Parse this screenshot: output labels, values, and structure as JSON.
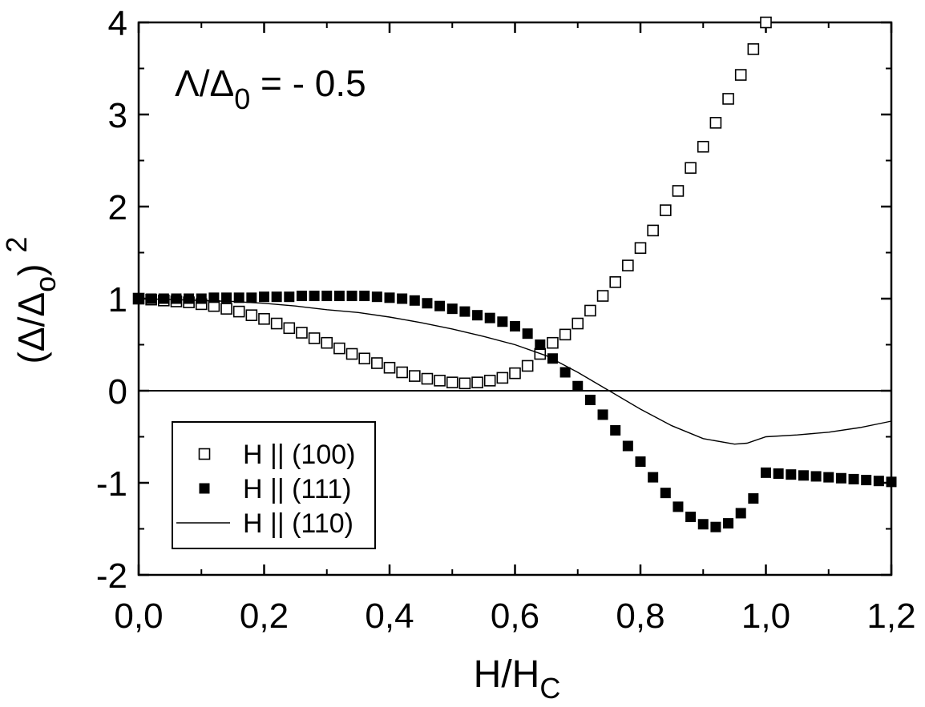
{
  "chart_data": {
    "type": "scatter",
    "annotation": [
      "Λ/Δ",
      "0",
      " = - 0.5"
    ],
    "xlabel": [
      "H/H",
      "C"
    ],
    "ylabel": [
      "(Δ/Δ",
      "o",
      ")",
      "2"
    ],
    "xlim": [
      0,
      1.2
    ],
    "ylim": [
      -2,
      4
    ],
    "xticks": [
      {
        "value": 0,
        "label": "0,0"
      },
      {
        "value": 0.2,
        "label": "0,2"
      },
      {
        "value": 0.4,
        "label": "0,4"
      },
      {
        "value": 0.6,
        "label": "0,6"
      },
      {
        "value": 0.8,
        "label": "0,8"
      },
      {
        "value": 1.0,
        "label": "1,0"
      },
      {
        "value": 1.2,
        "label": "1,2"
      }
    ],
    "yticks": [
      -2,
      -1,
      0,
      1,
      2,
      3,
      4
    ],
    "xminorticks": [
      0.1,
      0.3,
      0.5,
      0.7,
      0.9,
      1.1
    ],
    "yminorticks": [
      -1.5,
      -0.5,
      0.5,
      1.5,
      2.5,
      3.5
    ],
    "zero_line": true,
    "series": [
      {
        "name": "H || (100)",
        "marker": "open-square",
        "color": "#000000",
        "x": [
          0,
          0.02,
          0.04,
          0.06,
          0.08,
          0.1,
          0.12,
          0.14,
          0.16,
          0.18,
          0.2,
          0.22,
          0.24,
          0.26,
          0.28,
          0.3,
          0.32,
          0.34,
          0.36,
          0.38,
          0.4,
          0.42,
          0.44,
          0.46,
          0.48,
          0.5,
          0.52,
          0.54,
          0.56,
          0.58,
          0.6,
          0.62,
          0.64,
          0.66,
          0.68,
          0.7,
          0.72,
          0.74,
          0.76,
          0.78,
          0.8,
          0.82,
          0.84,
          0.86,
          0.88,
          0.9,
          0.92,
          0.94,
          0.96,
          0.98,
          1.0
        ],
        "values": [
          1.0,
          0.99,
          0.98,
          0.97,
          0.96,
          0.94,
          0.92,
          0.89,
          0.86,
          0.82,
          0.78,
          0.73,
          0.68,
          0.63,
          0.57,
          0.52,
          0.46,
          0.4,
          0.35,
          0.3,
          0.25,
          0.2,
          0.16,
          0.13,
          0.11,
          0.09,
          0.08,
          0.09,
          0.11,
          0.14,
          0.19,
          0.27,
          0.4,
          0.52,
          0.61,
          0.73,
          0.87,
          1.03,
          1.18,
          1.36,
          1.55,
          1.74,
          1.96,
          2.17,
          2.42,
          2.65,
          2.91,
          3.17,
          3.43,
          3.71,
          4.0
        ]
      },
      {
        "name": "H || (111)",
        "marker": "filled-square",
        "color": "#000000",
        "x": [
          0,
          0.02,
          0.04,
          0.06,
          0.08,
          0.1,
          0.12,
          0.14,
          0.16,
          0.18,
          0.2,
          0.22,
          0.24,
          0.26,
          0.28,
          0.3,
          0.32,
          0.34,
          0.36,
          0.38,
          0.4,
          0.42,
          0.44,
          0.46,
          0.48,
          0.5,
          0.52,
          0.54,
          0.56,
          0.58,
          0.6,
          0.62,
          0.64,
          0.66,
          0.68,
          0.7,
          0.72,
          0.74,
          0.76,
          0.78,
          0.8,
          0.82,
          0.84,
          0.86,
          0.88,
          0.9,
          0.92,
          0.94,
          0.96,
          0.98,
          1.0,
          1.02,
          1.04,
          1.06,
          1.08,
          1.1,
          1.12,
          1.14,
          1.16,
          1.18,
          1.2
        ],
        "values": [
          1.0,
          1.0,
          1.0,
          1.0,
          1.0,
          1.0,
          1.01,
          1.01,
          1.01,
          1.01,
          1.02,
          1.02,
          1.02,
          1.03,
          1.03,
          1.03,
          1.03,
          1.03,
          1.03,
          1.02,
          1.01,
          1.0,
          0.98,
          0.95,
          0.92,
          0.89,
          0.86,
          0.82,
          0.79,
          0.75,
          0.7,
          0.62,
          0.5,
          0.35,
          0.2,
          0.05,
          -0.1,
          -0.26,
          -0.43,
          -0.6,
          -0.77,
          -0.94,
          -1.11,
          -1.26,
          -1.37,
          -1.45,
          -1.48,
          -1.44,
          -1.33,
          -1.17,
          -0.89,
          -0.9,
          -0.91,
          -0.92,
          -0.93,
          -0.94,
          -0.95,
          -0.96,
          -0.97,
          -0.98,
          -0.99
        ]
      },
      {
        "name": "H || (110)",
        "marker": "line",
        "color": "#000000",
        "x": [
          0,
          0.05,
          0.1,
          0.15,
          0.2,
          0.25,
          0.3,
          0.35,
          0.4,
          0.45,
          0.5,
          0.55,
          0.6,
          0.65,
          0.7,
          0.75,
          0.8,
          0.85,
          0.9,
          0.95,
          0.97,
          1.0,
          1.05,
          1.1,
          1.15,
          1.2
        ],
        "values": [
          1.0,
          0.99,
          0.98,
          0.97,
          0.95,
          0.92,
          0.88,
          0.85,
          0.8,
          0.74,
          0.67,
          0.59,
          0.5,
          0.38,
          0.2,
          0.0,
          -0.2,
          -0.38,
          -0.52,
          -0.58,
          -0.57,
          -0.5,
          -0.48,
          -0.45,
          -0.4,
          -0.33
        ]
      }
    ]
  }
}
